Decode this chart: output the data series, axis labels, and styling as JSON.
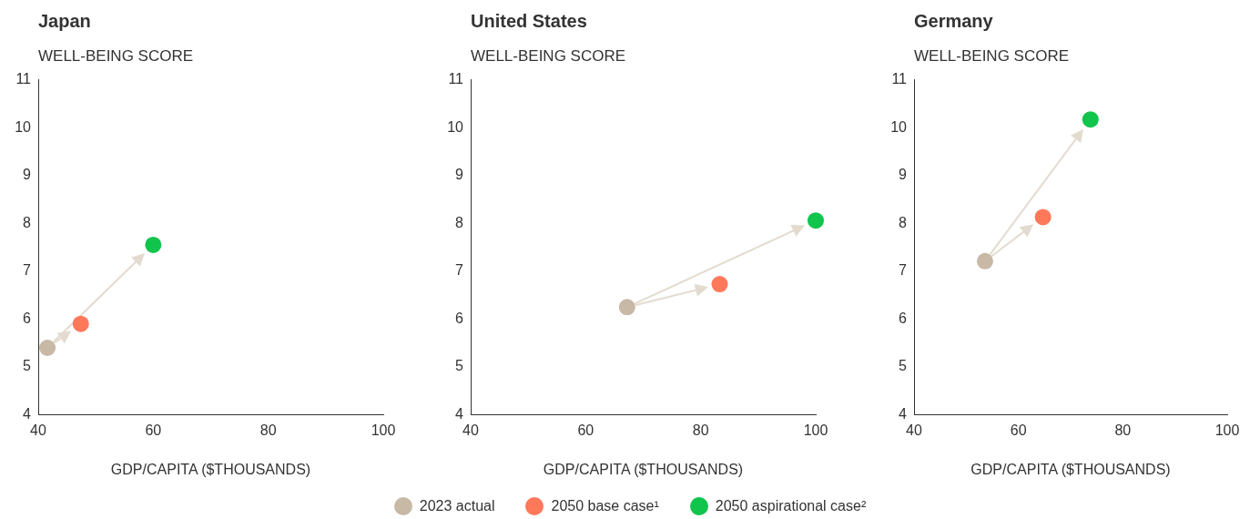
{
  "chart_data": [
    {
      "type": "scatter",
      "title": "Japan",
      "ylabel": "WELL-BEING SCORE",
      "xlabel": "GDP/CAPITA ($THOUSANDS)",
      "xlim": [
        40,
        100
      ],
      "xticks": [
        40,
        60,
        80,
        100
      ],
      "ylim": [
        4,
        11
      ],
      "yticks": [
        4,
        5,
        6,
        7,
        8,
        9,
        10,
        11
      ],
      "marker": "circle",
      "series": [
        {
          "color": "#c8b8a6",
          "x": [
            41.6
          ],
          "values": [
            5.4
          ]
        },
        {
          "color": "#ff785a",
          "x": [
            47.4
          ],
          "values": [
            5.9
          ]
        },
        {
          "color": "#10c44c",
          "x": [
            60
          ],
          "values": [
            7.55
          ]
        }
      ]
    },
    {
      "type": "scatter",
      "title": "United States",
      "ylabel": "WELL-BEING SCORE",
      "xlabel": "GDP/CAPITA ($THOUSANDS)",
      "xlim": [
        40,
        100
      ],
      "xticks": [
        40,
        60,
        80,
        100
      ],
      "ylim": [
        4,
        11
      ],
      "yticks": [
        4,
        5,
        6,
        7,
        8,
        9,
        10,
        11
      ],
      "marker": "circle",
      "legend": "bottom",
      "series": [
        {
          "name": "2023 actual",
          "color": "#c8b8a6",
          "x": [
            67.2
          ],
          "values": [
            6.25
          ]
        },
        {
          "name": "2050 base case¹",
          "color": "#ff785a",
          "x": [
            83.3
          ],
          "values": [
            6.73
          ]
        },
        {
          "name": "2050 aspirational case²",
          "color": "#10c44c",
          "x": [
            100
          ],
          "values": [
            8.06
          ]
        }
      ]
    },
    {
      "type": "scatter",
      "title": "Germany",
      "ylabel": "WELL-BEING SCORE",
      "xlabel": "GDP/CAPITA ($THOUSANDS)",
      "xlim": [
        40,
        100
      ],
      "xticks": [
        40,
        60,
        80,
        100
      ],
      "ylim": [
        4,
        11
      ],
      "yticks": [
        4,
        5,
        6,
        7,
        8,
        9,
        10,
        11
      ],
      "marker": "circle",
      "series": [
        {
          "color": "#c8b8a6",
          "x": [
            53.6
          ],
          "values": [
            7.21
          ]
        },
        {
          "color": "#ff785a",
          "x": [
            64.7
          ],
          "values": [
            8.13
          ]
        },
        {
          "color": "#10c44c",
          "x": [
            73.8
          ],
          "values": [
            10.17
          ]
        }
      ]
    }
  ]
}
